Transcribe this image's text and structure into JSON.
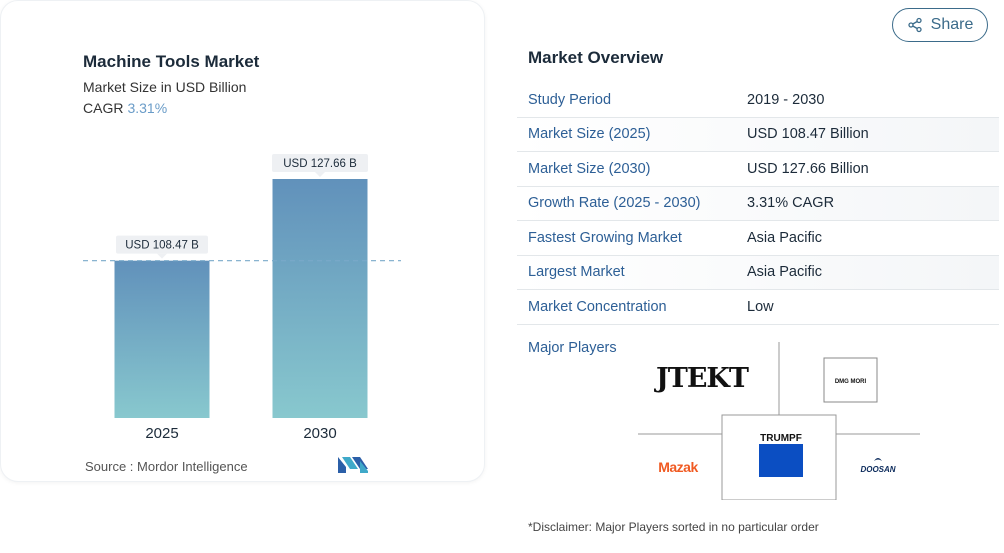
{
  "chart_data": {
    "type": "bar",
    "title": "Machine Tools Market",
    "subtitle": "Market Size in USD Billion",
    "cagr_label": "CAGR",
    "cagr_value": "3.31%",
    "categories": [
      "2025",
      "2030"
    ],
    "values": [
      108.47,
      127.66
    ],
    "data_labels": [
      "USD 108.47 B",
      "USD 127.66 B"
    ],
    "reference_line_value": 108.47,
    "bar_color_top": "#6191bb",
    "bar_color_bottom": "#88c8ce",
    "source_text": "Source :  Mordor Intelligence"
  },
  "share": {
    "label": "Share"
  },
  "overview": {
    "title": "Market Overview",
    "rows": [
      {
        "label": "Study Period",
        "value": "2019 - 2030"
      },
      {
        "label": "Market Size (2025)",
        "value": "USD 108.47 Billion"
      },
      {
        "label": "Market Size (2030)",
        "value": "USD 127.66 Billion"
      },
      {
        "label": "Growth Rate (2025 - 2030)",
        "value": "3.31% CAGR"
      },
      {
        "label": "Fastest Growing Market",
        "value": "Asia Pacific"
      },
      {
        "label": "Largest Market",
        "value": "Asia Pacific"
      },
      {
        "label": "Market Concentration",
        "value": "Low"
      }
    ],
    "players_label": "Major Players",
    "players": [
      "JTEKT",
      "DMG MORI",
      "TRUMPF",
      "Mazak",
      "DOOSAN"
    ],
    "disclaimer": "*Disclaimer: Major Players sorted in no particular order"
  }
}
